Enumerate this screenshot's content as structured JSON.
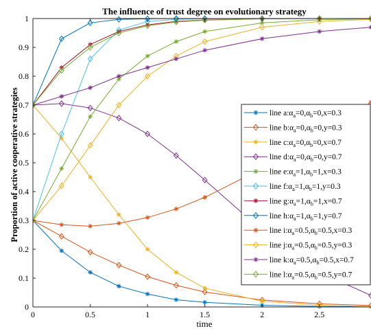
{
  "chart_data": {
    "type": "line",
    "title": "The influence of trust degree on evolutionary strategy",
    "xlabel": "time",
    "ylabel": "Proportion of active cooperative strategies",
    "xlim": [
      0,
      2.95
    ],
    "ylim": [
      0,
      1
    ],
    "xticks": [
      "0",
      "0.5",
      "1",
      "1.5",
      "2",
      "2.5"
    ],
    "yticks": [
      "0",
      "0.1",
      "0.2",
      "0.3",
      "0.4",
      "0.5",
      "0.6",
      "0.7",
      "0.8",
      "0.9",
      "1"
    ],
    "grid": false,
    "legend_position": "right",
    "series": [
      {
        "legend": {
          "prefix": "line a:",
          "aa": "0",
          "ab": "0",
          "var": "x",
          "val": "0.3"
        },
        "color": "#0072BD",
        "marker": "star",
        "x": [
          0,
          0.25,
          0.5,
          0.75,
          1.0,
          1.25,
          1.5,
          2.0,
          2.5,
          2.95
        ],
        "y": [
          0.3,
          0.195,
          0.12,
          0.072,
          0.045,
          0.025,
          0.016,
          0.006,
          0.002,
          0.001
        ]
      },
      {
        "legend": {
          "prefix": "line b:",
          "aa": "0",
          "ab": "0",
          "var": "y",
          "val": "0.3"
        },
        "color": "#D95319",
        "marker": "diamond",
        "x": [
          0,
          0.25,
          0.5,
          0.75,
          1.0,
          1.25,
          1.5,
          2.0,
          2.5,
          2.95
        ],
        "y": [
          0.3,
          0.245,
          0.19,
          0.145,
          0.105,
          0.075,
          0.052,
          0.024,
          0.011,
          0.005
        ]
      },
      {
        "legend": {
          "prefix": "line c:",
          "aa": "0",
          "ab": "0",
          "var": "x",
          "val": "0.7"
        },
        "color": "#EDB120",
        "marker": "star",
        "x": [
          0,
          0.25,
          0.5,
          0.75,
          1.0,
          1.25,
          1.5,
          2.0,
          2.5,
          2.95
        ],
        "y": [
          0.7,
          0.585,
          0.45,
          0.32,
          0.2,
          0.12,
          0.065,
          0.02,
          0.006,
          0.002
        ]
      },
      {
        "legend": {
          "prefix": "line d:",
          "aa": "0",
          "ab": "0",
          "var": "y",
          "val": "0.7"
        },
        "color": "#7E2F8E",
        "marker": "diamond",
        "x": [
          0,
          0.25,
          0.5,
          0.75,
          1.0,
          1.25,
          1.5,
          2.0,
          2.5,
          2.95
        ],
        "y": [
          0.7,
          0.705,
          0.69,
          0.655,
          0.6,
          0.525,
          0.44,
          0.265,
          0.12,
          0.04
        ]
      },
      {
        "legend": {
          "prefix": "line e:",
          "aa": "1",
          "ab": "1",
          "var": "x",
          "val": "0.3"
        },
        "color": "#77AC30",
        "marker": "star",
        "x": [
          0,
          0.25,
          0.5,
          0.75,
          1.0,
          1.25,
          1.5,
          2.0,
          2.5,
          2.95
        ],
        "y": [
          0.3,
          0.48,
          0.66,
          0.79,
          0.87,
          0.92,
          0.955,
          0.985,
          0.996,
          0.999
        ]
      },
      {
        "legend": {
          "prefix": "line f:",
          "aa": "1",
          "ab": "1",
          "var": "y",
          "val": "0.3"
        },
        "color": "#4DBEEE",
        "marker": "diamond",
        "x": [
          0,
          0.25,
          0.5,
          0.75,
          1.0,
          1.25,
          1.5,
          2.0,
          2.5,
          2.95
        ],
        "y": [
          0.3,
          0.6,
          0.86,
          0.96,
          0.99,
          0.997,
          0.999,
          1.0,
          1.0,
          1.0
        ]
      },
      {
        "legend": {
          "prefix": "line g:",
          "aa": "1",
          "ab": "1",
          "var": "x",
          "val": "0.7"
        },
        "color": "#A2142F",
        "marker": "star",
        "x": [
          0,
          0.25,
          0.5,
          0.75,
          1.0,
          1.25,
          1.5,
          2.0,
          2.5,
          2.95
        ],
        "y": [
          0.7,
          0.83,
          0.91,
          0.955,
          0.978,
          0.99,
          0.995,
          0.999,
          1.0,
          1.0
        ]
      },
      {
        "legend": {
          "prefix": "line h:",
          "aa": "1",
          "ab": "1",
          "var": "y",
          "val": "0.7"
        },
        "color": "#0072BD",
        "marker": "diamond",
        "x": [
          0,
          0.25,
          0.5,
          0.75,
          1.0,
          1.25,
          1.5,
          2.0,
          2.5,
          2.95
        ],
        "y": [
          0.7,
          0.93,
          0.985,
          0.997,
          0.999,
          1.0,
          1.0,
          1.0,
          1.0,
          1.0
        ]
      },
      {
        "legend": {
          "prefix": "line i:",
          "aa": "0.5",
          "ab": "0.5",
          "var": "x",
          "val": "0.3"
        },
        "color": "#D95319",
        "marker": "star",
        "x": [
          0,
          0.25,
          0.5,
          0.75,
          1.0,
          1.25,
          1.5,
          2.0,
          2.5,
          2.95
        ],
        "y": [
          0.3,
          0.285,
          0.28,
          0.29,
          0.31,
          0.34,
          0.38,
          0.48,
          0.6,
          0.71
        ]
      },
      {
        "legend": {
          "prefix": "line j:",
          "aa": "0.5",
          "ab": "0.5",
          "var": "y",
          "val": "0.3"
        },
        "color": "#EDB120",
        "marker": "diamond",
        "x": [
          0,
          0.25,
          0.5,
          0.75,
          1.0,
          1.25,
          1.5,
          2.0,
          2.5,
          2.95
        ],
        "y": [
          0.3,
          0.42,
          0.56,
          0.7,
          0.8,
          0.87,
          0.92,
          0.97,
          0.99,
          0.997
        ]
      },
      {
        "legend": {
          "prefix": "line k:",
          "aa": "0.5",
          "ab": "0.5",
          "var": "x",
          "val": "0.7"
        },
        "color": "#7E2F8E",
        "marker": "star",
        "x": [
          0,
          0.25,
          0.5,
          0.75,
          1.0,
          1.25,
          1.5,
          2.0,
          2.5,
          2.95
        ],
        "y": [
          0.7,
          0.73,
          0.76,
          0.8,
          0.83,
          0.86,
          0.89,
          0.93,
          0.955,
          0.97
        ]
      },
      {
        "legend": {
          "prefix": "line l:",
          "aa": "0.5",
          "ab": "0.5",
          "var": "y",
          "val": "0.7"
        },
        "color": "#77AC30",
        "marker": "diamond",
        "x": [
          0,
          0.25,
          0.5,
          0.75,
          1.0,
          1.25,
          1.5,
          2.0,
          2.5,
          2.95
        ],
        "y": [
          0.7,
          0.82,
          0.9,
          0.95,
          0.975,
          0.988,
          0.994,
          0.999,
          1.0,
          1.0
        ]
      }
    ]
  }
}
